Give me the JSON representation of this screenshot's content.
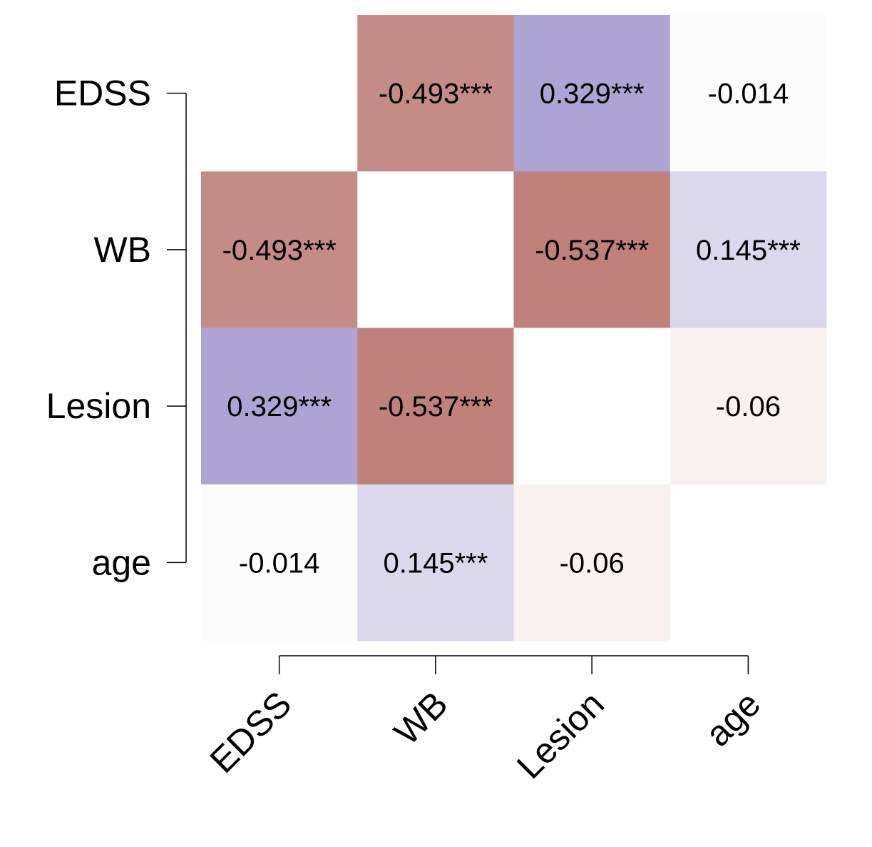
{
  "chart_data": {
    "type": "heatmap",
    "title": "",
    "xlabel": "",
    "ylabel": "",
    "variables": [
      "EDSS",
      "WB",
      "Lesion",
      "age"
    ],
    "matrix": [
      [
        null,
        -0.493,
        0.329,
        -0.014
      ],
      [
        -0.493,
        null,
        -0.537,
        0.145
      ],
      [
        0.329,
        -0.537,
        null,
        -0.06
      ],
      [
        -0.014,
        0.145,
        -0.06,
        null
      ]
    ],
    "labels": [
      [
        "",
        "-0.493***",
        "0.329***",
        "-0.014"
      ],
      [
        "-0.493***",
        "",
        "-0.537***",
        "0.145***"
      ],
      [
        "0.329***",
        "-0.537***",
        "",
        "-0.06"
      ],
      [
        "-0.014",
        "0.145***",
        "-0.06",
        ""
      ]
    ],
    "color_scale": {
      "negative": "#c0817b",
      "positive": "#a79ccf",
      "zero": "#ffffff"
    },
    "grid": false,
    "legend": "none"
  }
}
